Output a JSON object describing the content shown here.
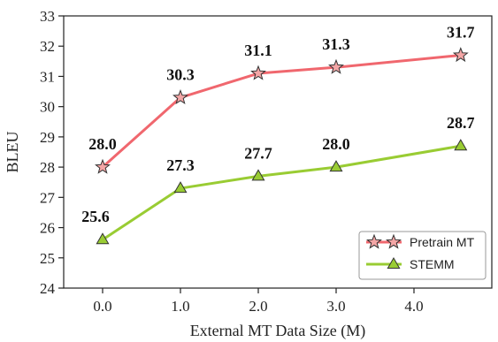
{
  "chart_data": {
    "type": "line",
    "xlabel": "External MT Data Size (M)",
    "ylabel": "BLEU",
    "xlim": [
      -0.5,
      5.0
    ],
    "ylim": [
      24,
      33
    ],
    "x_ticks": [
      0.0,
      1.0,
      2.0,
      3.0,
      4.0
    ],
    "x_tick_labels": [
      "0.0",
      "1.0",
      "2.0",
      "3.0",
      "4.0"
    ],
    "y_ticks": [
      24,
      25,
      26,
      27,
      28,
      29,
      30,
      31,
      32,
      33
    ],
    "y_tick_labels": [
      "24",
      "25",
      "26",
      "27",
      "28",
      "29",
      "30",
      "31",
      "32",
      "33"
    ],
    "grid": false,
    "legend_position": "bottom-right",
    "series": [
      {
        "name": "Pretrain MT",
        "color": "#f0676e",
        "marker": "star",
        "x": [
          0.0,
          1.0,
          2.0,
          3.0,
          4.6
        ],
        "y": [
          28.0,
          30.3,
          31.1,
          31.3,
          31.7
        ],
        "labels": [
          "28.0",
          "30.3",
          "31.1",
          "31.3",
          "31.7"
        ]
      },
      {
        "name": "STEMM",
        "color": "#99cc33",
        "marker": "triangle",
        "x": [
          0.0,
          1.0,
          2.0,
          3.0,
          4.6
        ],
        "y": [
          25.6,
          27.3,
          27.7,
          28.0,
          28.7
        ],
        "labels": [
          "25.6",
          "27.3",
          "27.7",
          "28.0",
          "28.7"
        ]
      }
    ]
  }
}
